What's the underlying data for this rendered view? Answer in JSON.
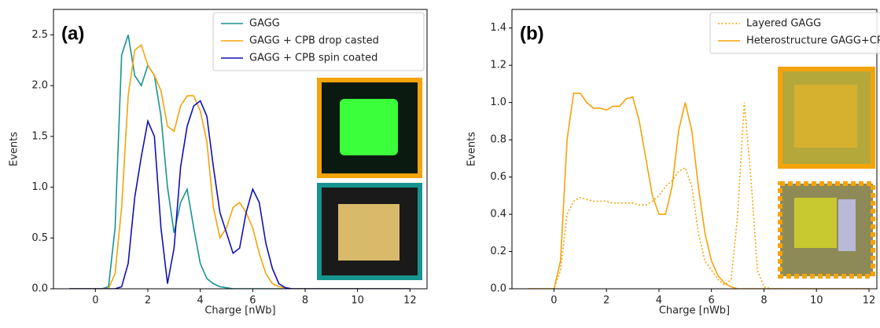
{
  "chart_data": [
    {
      "type": "line",
      "annotation": "(a)",
      "x_label": "Charge [nWb]",
      "y_label": "Events",
      "x": [
        -1,
        0,
        0.25,
        0.5,
        0.75,
        1,
        1.25,
        1.5,
        1.75,
        2,
        2.25,
        2.5,
        2.75,
        3,
        3.25,
        3.5,
        3.75,
        4,
        4.25,
        4.5,
        4.75,
        5,
        5.25,
        5.5,
        5.75,
        6,
        6.25,
        6.5,
        6.75,
        7,
        7.25,
        7.5,
        7.75,
        8,
        8.25,
        8.5,
        8.75,
        9,
        12
      ],
      "series": [
        {
          "name": "GAGG",
          "color": "#17948f",
          "linestyle": "solid",
          "values": [
            0,
            0,
            0,
            0.02,
            0.6,
            2.3,
            2.5,
            2.1,
            2.0,
            2.2,
            2.1,
            1.7,
            1.0,
            0.55,
            0.85,
            0.98,
            0.6,
            0.25,
            0.1,
            0.05,
            0.02,
            0.01,
            0,
            0,
            0,
            0,
            0,
            0,
            0,
            0,
            0,
            0,
            0,
            0,
            0,
            0,
            0,
            0,
            0
          ]
        },
        {
          "name": "GAGG + CPB drop casted",
          "color": "#f5a30a",
          "linestyle": "solid",
          "values": [
            0,
            0,
            0,
            0,
            0.15,
            0.8,
            1.9,
            2.35,
            2.4,
            2.2,
            2.1,
            1.95,
            1.6,
            1.55,
            1.8,
            1.9,
            1.9,
            1.75,
            1.45,
            0.8,
            0.5,
            0.6,
            0.8,
            0.85,
            0.75,
            0.6,
            0.35,
            0.15,
            0.05,
            0.02,
            0.01,
            0,
            0,
            0,
            0,
            0,
            0,
            0,
            0
          ]
        },
        {
          "name": "GAGG + CPB spin coated",
          "color": "#1010b8",
          "linestyle": "solid",
          "values": [
            0,
            0,
            0,
            0,
            0,
            0.02,
            0.25,
            0.9,
            1.3,
            1.65,
            1.5,
            0.6,
            0.05,
            0.4,
            1.2,
            1.6,
            1.8,
            1.85,
            1.7,
            1.2,
            0.75,
            0.55,
            0.35,
            0.4,
            0.75,
            0.98,
            0.85,
            0.45,
            0.2,
            0.05,
            0.01,
            0,
            0,
            0,
            0,
            0,
            0,
            0,
            0
          ]
        }
      ],
      "xlim": [
        -1.6,
        12.65
      ],
      "xticks": [
        0,
        2,
        4,
        6,
        8,
        10,
        12
      ],
      "ylim": [
        0,
        2.75
      ],
      "yticks": [
        {
          "value": 0,
          "label": "0.0"
        },
        0.5,
        {
          "value": 1,
          "label": "1.0"
        },
        1.5,
        {
          "value": 2,
          "label": "2.0"
        },
        2.5
      ],
      "legend": "upper right"
    },
    {
      "type": "line",
      "annotation": "(b)",
      "x_label": "Charge [nWb]",
      "y_label": "Events",
      "x": [
        -1,
        0,
        0.25,
        0.5,
        0.75,
        1,
        1.25,
        1.5,
        1.75,
        2,
        2.25,
        2.5,
        2.75,
        3,
        3.25,
        3.5,
        3.75,
        4,
        4.25,
        4.5,
        4.75,
        5,
        5.25,
        5.5,
        5.75,
        6,
        6.25,
        6.5,
        6.75,
        7,
        7.25,
        7.5,
        7.75,
        8,
        8.25,
        8.5,
        8.75,
        9,
        12
      ],
      "series": [
        {
          "name": "Layered GAGG",
          "color": "#f5a30a",
          "linestyle": "dotted",
          "values": [
            0,
            0,
            0.1,
            0.4,
            0.47,
            0.49,
            0.48,
            0.47,
            0.47,
            0.47,
            0.46,
            0.46,
            0.46,
            0.46,
            0.45,
            0.45,
            0.47,
            0.5,
            0.55,
            0.58,
            0.63,
            0.65,
            0.55,
            0.3,
            0.15,
            0.1,
            0.05,
            0.02,
            0.05,
            0.4,
            1.0,
            0.6,
            0.1,
            0.01,
            0,
            0,
            0,
            0,
            0
          ]
        },
        {
          "name": "Heterostructure GAGG+CPB",
          "color": "#f5a30a",
          "linestyle": "solid",
          "values": [
            0,
            0,
            0.15,
            0.8,
            1.05,
            1.05,
            1.0,
            0.97,
            0.97,
            0.96,
            0.98,
            0.98,
            1.02,
            1.03,
            0.9,
            0.7,
            0.5,
            0.4,
            0.4,
            0.55,
            0.85,
            1.0,
            0.85,
            0.55,
            0.3,
            0.15,
            0.07,
            0.03,
            0.01,
            0,
            0,
            0,
            0,
            0,
            0,
            0,
            0,
            0,
            0
          ]
        }
      ],
      "xlim": [
        -1.6,
        12.3
      ],
      "xticks": [
        0,
        2,
        4,
        6,
        8,
        10,
        12
      ],
      "ylim": [
        0,
        1.5
      ],
      "yticks": [
        {
          "value": 0,
          "label": "0.0"
        },
        0.2,
        0.4,
        0.6,
        0.8,
        {
          "value": 1,
          "label": "1.0"
        },
        1.2,
        1.4
      ],
      "legend": "upper center"
    }
  ]
}
